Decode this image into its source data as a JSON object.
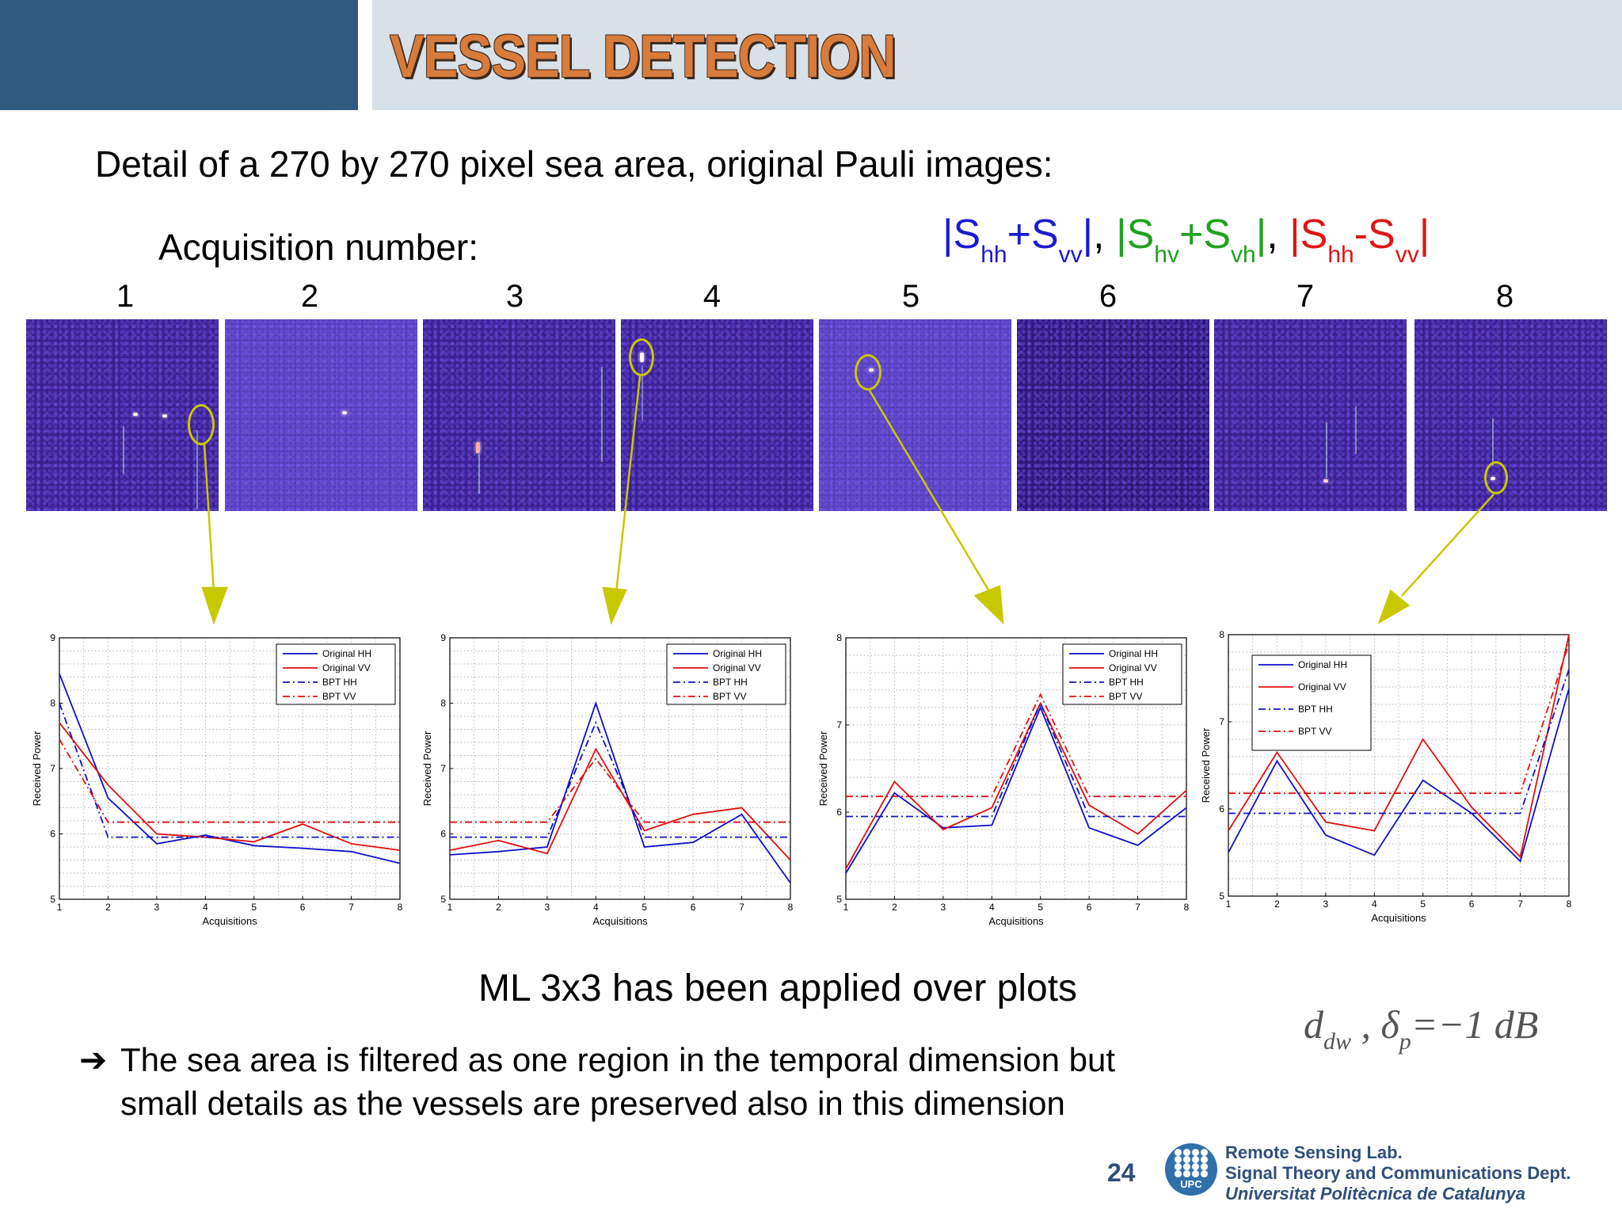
{
  "header": {
    "title": "VESSEL DETECTION"
  },
  "subtitle": "Detail of a 270 by 270 pixel sea area, original Pauli images:",
  "acquisition_label": "Acquisition number:",
  "pauli": {
    "p1_base": "|S",
    "p1_sub1": "hh",
    "p1_mid": "+S",
    "p1_sub2": "vv",
    "p1_end": "|",
    "sep1": ", ",
    "p2_base": "|S",
    "p2_sub1": "hv",
    "p2_mid": "+S",
    "p2_sub2": "vh",
    "p2_end": "|",
    "sep2": ", ",
    "p3_base": "|S",
    "p3_sub1": "hh",
    "p3_mid": "-S",
    "p3_sub2": "vv",
    "p3_end": "|",
    "colors": {
      "hh_plus_vv": "#1a1ad0",
      "hv_plus_vh": "#1ea21e",
      "hh_minus_vv": "#e01515"
    }
  },
  "acquisitions": [
    "1",
    "2",
    "3",
    "4",
    "5",
    "6",
    "7",
    "8"
  ],
  "ml_note": "ML 3x3 has been applied over plots",
  "formula": {
    "d": "d",
    "d_sub": "dw",
    "comma": " ,  ",
    "delta": "δ",
    "delta_sub": "p",
    "rest": "=−1 dB"
  },
  "bullet": {
    "arrow": "➔",
    "line1": "The sea area is filtered as one region in the temporal dimension but",
    "line2": "small details as the vessels are preserved also in this dimension"
  },
  "footer": {
    "page": "24",
    "logo_text": "UPC",
    "lab1": "Remote Sensing Lab.",
    "lab2": "Signal Theory and Communications Dept.",
    "lab3": "Universitat Politècnica de Catalunya"
  },
  "chart_data": [
    {
      "type": "line",
      "x": [
        1,
        2,
        3,
        4,
        5,
        6,
        7,
        8
      ],
      "xlabel": "Acquisitions",
      "ylabel": "Received Power",
      "xlim": [
        1,
        8
      ],
      "ylim": [
        5,
        9
      ],
      "yticks": [
        5,
        6,
        7,
        8,
        9
      ],
      "grid": true,
      "legend": "top-right",
      "series": [
        {
          "name": "Original HH",
          "color": "#1010c8",
          "style": "solid",
          "values": [
            8.45,
            6.55,
            5.85,
            5.98,
            5.82,
            5.78,
            5.73,
            5.55
          ]
        },
        {
          "name": "Original VV",
          "color": "#e01010",
          "style": "solid",
          "values": [
            7.7,
            6.75,
            6.0,
            5.95,
            5.88,
            6.15,
            5.85,
            5.75
          ]
        },
        {
          "name": "BPT HH",
          "color": "#1010c8",
          "style": "dashdot",
          "values": [
            8.0,
            5.95,
            5.95,
            5.95,
            5.95,
            5.95,
            5.95,
            5.95
          ]
        },
        {
          "name": "BPT VV",
          "color": "#e01010",
          "style": "dashdot",
          "values": [
            7.45,
            6.18,
            6.18,
            6.18,
            6.18,
            6.18,
            6.18,
            6.18
          ]
        }
      ]
    },
    {
      "type": "line",
      "x": [
        1,
        2,
        3,
        4,
        5,
        6,
        7,
        8
      ],
      "xlabel": "Acquisitions",
      "ylabel": "Received Power",
      "xlim": [
        1,
        8
      ],
      "ylim": [
        5,
        9
      ],
      "yticks": [
        5,
        6,
        7,
        8,
        9
      ],
      "grid": true,
      "legend": "top-right",
      "series": [
        {
          "name": "Original HH",
          "color": "#1010c8",
          "style": "solid",
          "values": [
            5.68,
            5.73,
            5.8,
            8.0,
            5.8,
            5.87,
            6.3,
            5.25
          ]
        },
        {
          "name": "Original VV",
          "color": "#e01010",
          "style": "solid",
          "values": [
            5.75,
            5.9,
            5.7,
            7.3,
            6.05,
            6.3,
            6.4,
            5.6
          ]
        },
        {
          "name": "BPT HH",
          "color": "#1010c8",
          "style": "dashdot",
          "values": [
            5.95,
            5.95,
            5.95,
            7.7,
            5.95,
            5.95,
            5.95,
            5.95
          ]
        },
        {
          "name": "BPT VV",
          "color": "#e01010",
          "style": "dashdot",
          "values": [
            6.18,
            6.18,
            6.18,
            7.15,
            6.18,
            6.18,
            6.18,
            6.18
          ]
        }
      ]
    },
    {
      "type": "line",
      "x": [
        1,
        2,
        3,
        4,
        5,
        6,
        7,
        8
      ],
      "xlabel": "Acquisitions",
      "ylabel": "Received Power",
      "xlim": [
        1,
        8
      ],
      "ylim": [
        5,
        8
      ],
      "yticks": [
        5,
        6,
        7,
        8
      ],
      "grid": true,
      "legend": "top-right",
      "series": [
        {
          "name": "Original HH",
          "color": "#1010c8",
          "style": "solid",
          "values": [
            5.3,
            6.22,
            5.82,
            5.85,
            7.2,
            5.82,
            5.62,
            6.05
          ]
        },
        {
          "name": "Original VV",
          "color": "#e01010",
          "style": "solid",
          "values": [
            5.35,
            6.35,
            5.8,
            6.05,
            7.25,
            6.08,
            5.75,
            6.25
          ]
        },
        {
          "name": "BPT HH",
          "color": "#1010c8",
          "style": "dashdot",
          "values": [
            5.95,
            5.95,
            5.95,
            5.95,
            7.25,
            5.95,
            5.95,
            5.95
          ]
        },
        {
          "name": "BPT VV",
          "color": "#e01010",
          "style": "dashdot",
          "values": [
            6.18,
            6.18,
            6.18,
            6.18,
            7.35,
            6.18,
            6.18,
            6.18
          ]
        }
      ]
    },
    {
      "type": "line",
      "x": [
        1,
        2,
        3,
        4,
        5,
        6,
        7,
        8
      ],
      "xlabel": "Acquisitions",
      "ylabel": "Received Power",
      "xlim": [
        1,
        8
      ],
      "ylim": [
        5,
        8
      ],
      "yticks": [
        5,
        6,
        7,
        8
      ],
      "grid": true,
      "legend": "top-left",
      "series": [
        {
          "name": "Original HH",
          "color": "#1010c8",
          "style": "solid",
          "values": [
            5.5,
            6.55,
            5.7,
            5.47,
            6.33,
            5.95,
            5.4,
            7.38
          ]
        },
        {
          "name": "Original VV",
          "color": "#e01010",
          "style": "solid",
          "values": [
            5.75,
            6.65,
            5.85,
            5.75,
            6.8,
            6.02,
            5.45,
            8.0
          ]
        },
        {
          "name": "BPT HH",
          "color": "#1010c8",
          "style": "dashdot",
          "values": [
            5.95,
            5.95,
            5.95,
            5.95,
            5.95,
            5.95,
            5.95,
            7.6
          ]
        },
        {
          "name": "BPT VV",
          "color": "#e01010",
          "style": "dashdot",
          "values": [
            6.18,
            6.18,
            6.18,
            6.18,
            6.18,
            6.18,
            6.18,
            7.9
          ]
        }
      ]
    }
  ]
}
